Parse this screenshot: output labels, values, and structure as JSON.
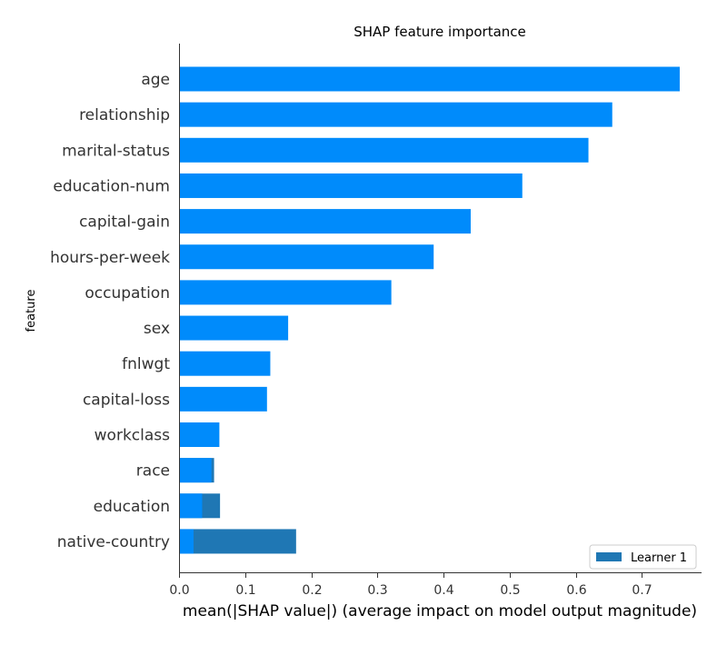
{
  "chart_data": {
    "type": "bar",
    "orientation": "horizontal",
    "title": "SHAP feature importance",
    "xlabel": "mean(|SHAP value|) (average impact on model output magnitude)",
    "ylabel": "feature",
    "xlim": [
      0,
      0.79
    ],
    "xticks": [
      0,
      0.1,
      0.2,
      0.3,
      0.4,
      0.5,
      0.6,
      0.7
    ],
    "xtick_labels": [
      "0.0",
      "0.1",
      "0.2",
      "0.3",
      "0.4",
      "0.5",
      "0.6",
      "0.7"
    ],
    "grid": false,
    "legend_position": "bottom-right",
    "categories": [
      "age",
      "relationship",
      "marital-status",
      "education-num",
      "capital-gain",
      "hours-per-week",
      "occupation",
      "sex",
      "fnlwgt",
      "capital-loss",
      "workclass",
      "race",
      "education",
      "native-country"
    ],
    "series": [
      {
        "name": "",
        "color": "#008bfb",
        "values": [
          0.757,
          0.655,
          0.619,
          0.519,
          0.441,
          0.385,
          0.321,
          0.165,
          0.138,
          0.133,
          0.061,
          0.049,
          0.035,
          0.022
        ]
      },
      {
        "name": "Learner 1",
        "color": "#1f77b4",
        "values": [
          0,
          0,
          0,
          0,
          0,
          0,
          0,
          0,
          0,
          0,
          0,
          0.053,
          0.062,
          0.177
        ]
      }
    ]
  }
}
